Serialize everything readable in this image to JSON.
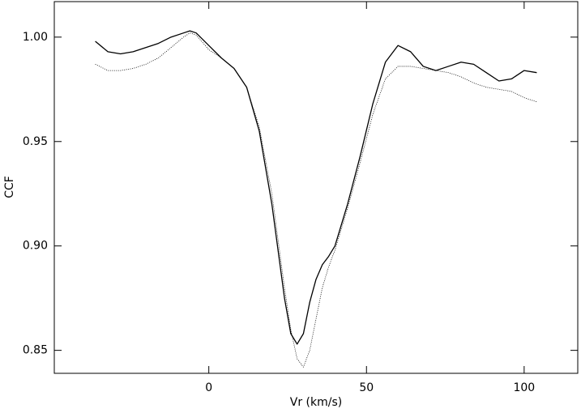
{
  "chart_data": {
    "type": "line",
    "x_label": "Vr (km/s)",
    "y_label": "CCF",
    "x": [
      -36,
      -32,
      -28,
      -24,
      -20,
      -16,
      -12,
      -8,
      -6,
      -4,
      0,
      4,
      8,
      12,
      16,
      20,
      24,
      26,
      28,
      30,
      32,
      34,
      36,
      38,
      40,
      44,
      48,
      52,
      56,
      60,
      64,
      68,
      72,
      76,
      80,
      84,
      88,
      92,
      96,
      100,
      104
    ],
    "series": [
      {
        "color": "#000000",
        "style": "solid",
        "values": [
          0.998,
          0.993,
          0.992,
          0.993,
          0.995,
          0.997,
          1.0,
          1.002,
          1.003,
          1.002,
          0.996,
          0.99,
          0.985,
          0.976,
          0.955,
          0.92,
          0.875,
          0.858,
          0.853,
          0.858,
          0.873,
          0.884,
          0.891,
          0.895,
          0.9,
          0.92,
          0.943,
          0.968,
          0.988,
          0.996,
          0.993,
          0.986,
          0.984,
          0.986,
          0.988,
          0.987,
          0.983,
          0.979,
          0.98,
          0.984,
          0.983
        ]
      },
      {
        "color": "#000000",
        "style": "dotted",
        "values": [
          0.987,
          0.984,
          0.984,
          0.985,
          0.987,
          0.99,
          0.995,
          1.0,
          1.002,
          1.001,
          0.994,
          0.99,
          0.985,
          0.976,
          0.957,
          0.925,
          0.88,
          0.86,
          0.846,
          0.842,
          0.85,
          0.865,
          0.88,
          0.89,
          0.898,
          0.918,
          0.94,
          0.963,
          0.98,
          0.986,
          0.986,
          0.985,
          0.984,
          0.983,
          0.981,
          0.978,
          0.976,
          0.975,
          0.974,
          0.971,
          0.969
        ]
      }
    ],
    "xlim": [
      -49,
      117
    ],
    "xticks": [
      0,
      50,
      100
    ],
    "ylim": [
      0.839,
      1.017
    ],
    "yticks": [
      {
        "value": 0.85,
        "label": "0.85"
      },
      {
        "value": 0.9,
        "label": "0.90"
      },
      {
        "value": 0.95,
        "label": "0.95"
      },
      {
        "value": 1.0,
        "label": "1.00"
      }
    ]
  }
}
